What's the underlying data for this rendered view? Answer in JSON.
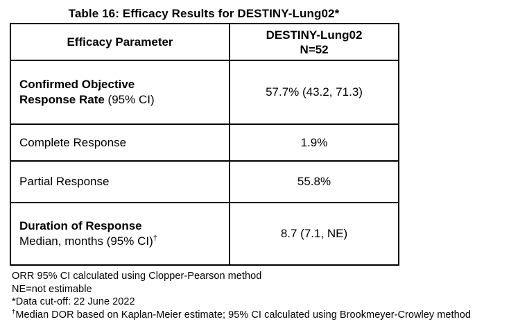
{
  "title": "Table 16: Efficacy Results for DESTINY-Lung02*",
  "table": {
    "header": {
      "col1": "Efficacy Parameter",
      "col2_line1": "DESTINY-Lung02",
      "col2_line2": "N=52"
    },
    "rows": [
      {
        "bold": "Confirmed Objective Response Rate",
        "normal": " (95% CI)",
        "value": "57.7% (43.2, 71.3)"
      },
      {
        "label": "Complete Response",
        "value": "1.9%"
      },
      {
        "label": "Partial Response",
        "value": "55.8%"
      },
      {
        "bold": "Duration of Response",
        "line2": "Median, months (95% CI)",
        "line2_sup": "†",
        "value": "8.7 (7.1, NE)"
      }
    ]
  },
  "footnotes": {
    "line1": "ORR 95% CI calculated using Clopper-Pearson method",
    "line2": "NE=not estimable",
    "line3": "*Data cut-off: 22 June 2022",
    "line4_sup": "†",
    "line4_text": "Median DOR based on Kaplan-Meier estimate; 95% CI calculated using Brookmeyer-Crowley method"
  },
  "colors": {
    "text": "#000000",
    "border": "#000000",
    "background": "#ffffff"
  }
}
